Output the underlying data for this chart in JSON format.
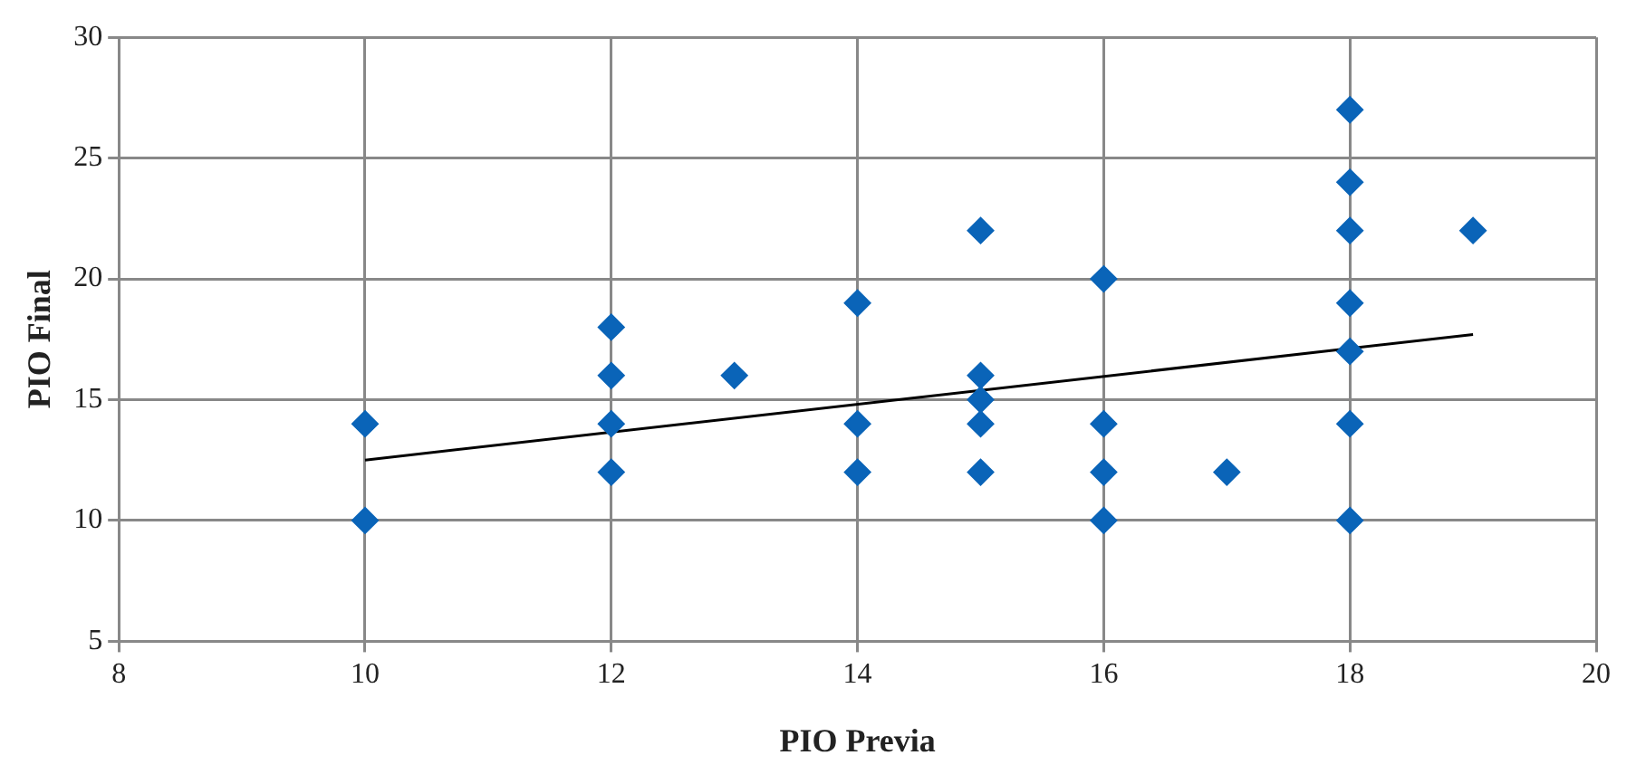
{
  "chart_data": {
    "type": "scatter",
    "xlabel": "PIO Previa",
    "ylabel": "PIO Final",
    "xlim": [
      8,
      20
    ],
    "xticks": [
      8,
      10,
      12,
      14,
      16,
      18,
      20
    ],
    "ylim": [
      5,
      30
    ],
    "yticks": [
      5,
      10,
      15,
      20,
      25,
      30
    ],
    "grid": true,
    "legend": false,
    "marker": "diamond",
    "series": [
      {
        "type": "scatter",
        "color": "#0a64b8",
        "x": [
          10,
          10,
          12,
          12,
          12,
          12,
          13,
          14,
          14,
          14,
          15,
          15,
          15,
          15,
          15,
          16,
          16,
          16,
          16,
          17,
          18,
          18,
          18,
          18,
          18,
          18,
          18,
          19
        ],
        "values": [
          14,
          10,
          18,
          16,
          14,
          12,
          16,
          19,
          14,
          12,
          22,
          16,
          15,
          14,
          12,
          20,
          14,
          12,
          10,
          12,
          27,
          24,
          22,
          19,
          17,
          14,
          10,
          22
        ]
      },
      {
        "type": "line",
        "color": "#000000",
        "marker": "none",
        "x": [
          10,
          19
        ],
        "values": [
          12.5,
          17.7
        ]
      }
    ]
  }
}
